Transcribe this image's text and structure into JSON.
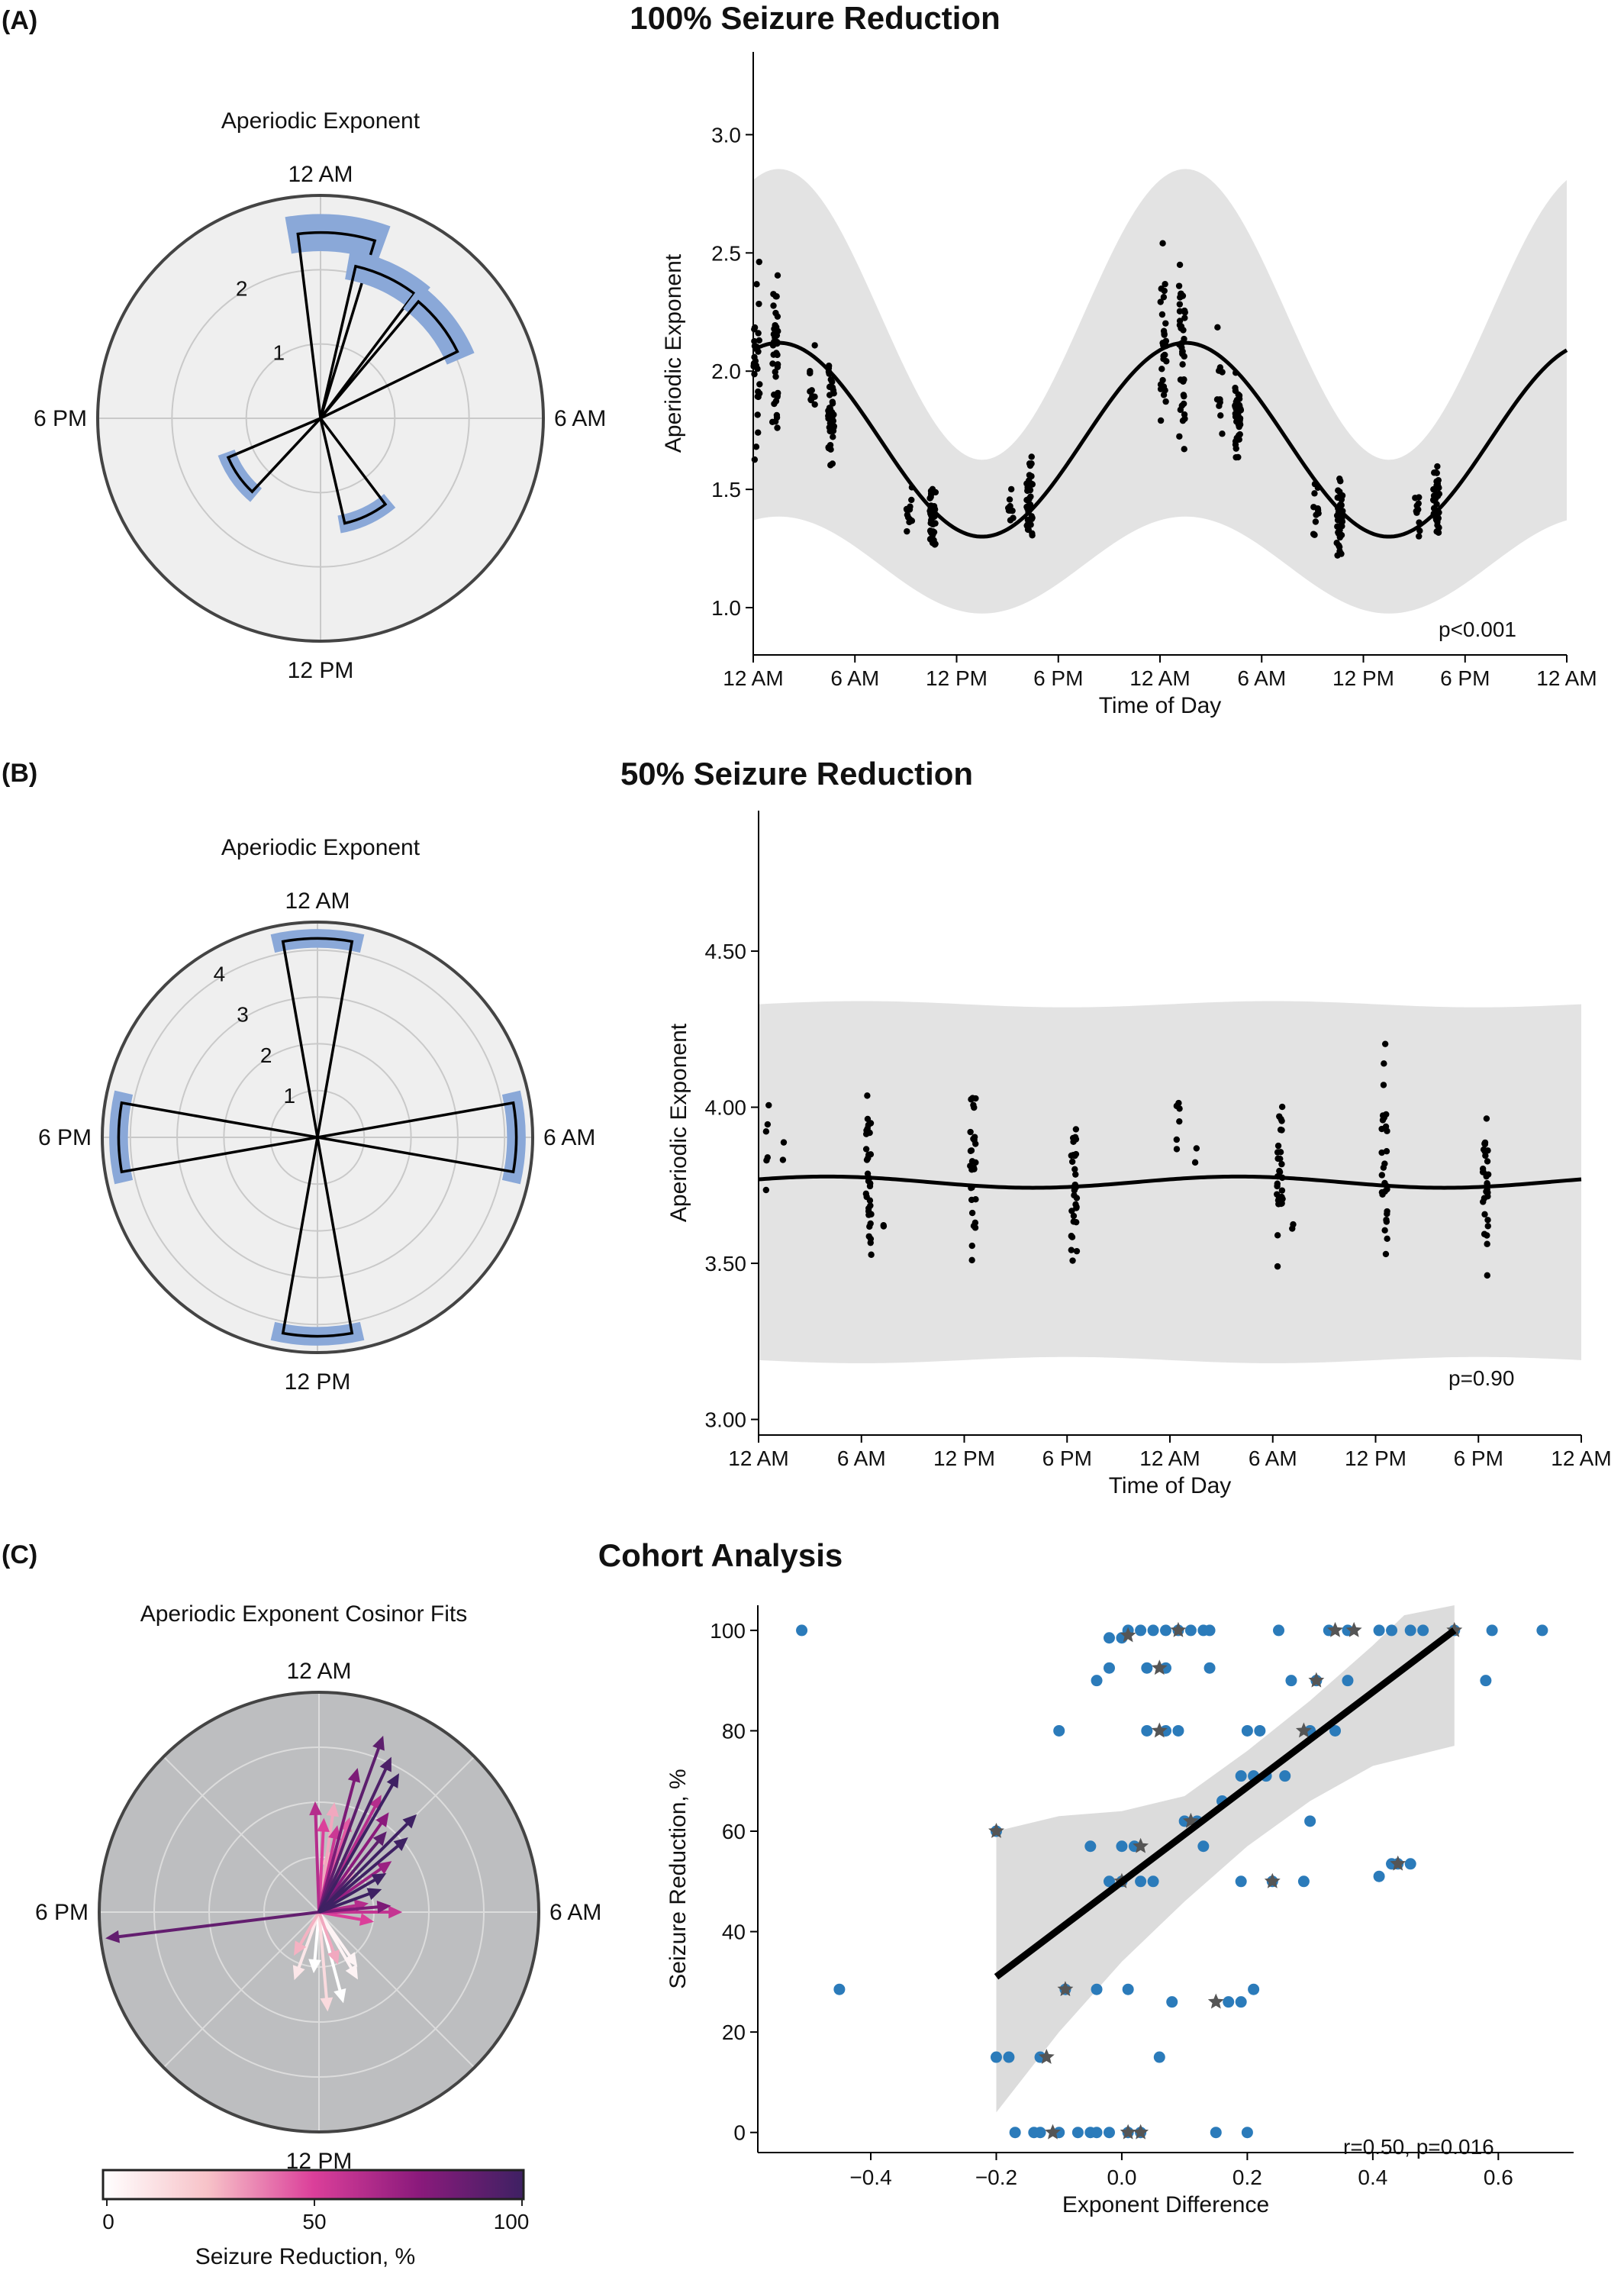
{
  "panels": {
    "A": {
      "letter": "(A)",
      "title": "100% Seizure Reduction",
      "polar_title": "Aperiodic Exponent",
      "annotation": "p<0.001"
    },
    "B": {
      "letter": "(B)",
      "title": "50% Seizure Reduction",
      "polar_title": "Aperiodic Exponent",
      "annotation": "p=0.90"
    },
    "C": {
      "letter": "(C)",
      "title": "Cohort Analysis",
      "polar_title": "Aperiodic Exponent Cosinor Fits",
      "annotation": "r=0.50, p=0.016",
      "colorbar_label": "Seizure Reduction, %",
      "colorbar_ticks": [
        "0",
        "50",
        "100"
      ]
    }
  },
  "colors": {
    "rose_fill": "#8aa8d8",
    "polar_bg_ab": "#efefef",
    "polar_bg_c": "#bdbec0",
    "band": "#e3e3e3",
    "scatter_point": "#2b7bba",
    "star": "#555555",
    "fit_line": "#000000"
  },
  "chart_data": [
    {
      "id": "A-polar",
      "type": "polar-bar",
      "title": "Aperiodic Exponent",
      "direction_labels": [
        "12 AM",
        "6 AM",
        "12 PM",
        "6 PM"
      ],
      "radial_ticks": [
        "1",
        "2"
      ],
      "rmax": 3,
      "bins": [
        {
          "angle_deg": 5,
          "width_deg": 24,
          "value": 2.5,
          "err": 0.25
        },
        {
          "angle_deg": 25,
          "width_deg": 24,
          "value": 2.1,
          "err": 0.2
        },
        {
          "angle_deg": 52,
          "width_deg": 24,
          "value": 2.05,
          "err": 0.2
        },
        {
          "angle_deg": 155,
          "width_deg": 24,
          "value": 1.45,
          "err": 0.12
        },
        {
          "angle_deg": 235,
          "width_deg": 24,
          "value": 1.35,
          "err": 0.12
        }
      ]
    },
    {
      "id": "A-line",
      "type": "scatter",
      "title": "100% Seizure Reduction",
      "xlabel": "Time of Day",
      "ylabel": "Aperiodic Exponent",
      "x_tick_labels": [
        "12 AM",
        "6 AM",
        "12 PM",
        "6 PM",
        "12 AM",
        "6 AM",
        "12 PM",
        "6 PM",
        "12 AM"
      ],
      "x_ticks_hours": [
        0,
        6,
        12,
        18,
        24,
        30,
        36,
        42,
        48
      ],
      "xlim": [
        0,
        48
      ],
      "ylim": [
        0.8,
        3.35
      ],
      "y_ticks": [
        "1.0",
        "1.5",
        "2.0",
        "2.5",
        "3.0"
      ],
      "fit": {
        "mesor": 1.71,
        "amplitude": 0.41,
        "acrophase_hours": 1.5,
        "period_hours": 24
      },
      "band_halfwidth_hours_pattern": {
        "half_width_peak": 0.52,
        "half_width_trough": 0.45
      },
      "clusters": [
        {
          "hour": 0.2,
          "center": 2.05,
          "spread": 0.5,
          "n": 28
        },
        {
          "hour": 1.3,
          "center": 2.1,
          "spread": 0.45,
          "n": 40
        },
        {
          "hour": 3.5,
          "center": 1.95,
          "spread": 0.28,
          "n": 10
        },
        {
          "hour": 4.6,
          "center": 1.8,
          "spread": 0.22,
          "n": 42
        },
        {
          "hour": 9.2,
          "center": 1.4,
          "spread": 0.15,
          "n": 12
        },
        {
          "hour": 10.6,
          "center": 1.38,
          "spread": 0.18,
          "n": 42
        },
        {
          "hour": 15.2,
          "center": 1.42,
          "spread": 0.12,
          "n": 10
        },
        {
          "hour": 16.3,
          "center": 1.45,
          "spread": 0.17,
          "n": 40
        },
        {
          "hour": 24.2,
          "center": 2.05,
          "spread": 0.5,
          "n": 28
        },
        {
          "hour": 25.3,
          "center": 2.1,
          "spread": 0.45,
          "n": 40
        },
        {
          "hour": 27.5,
          "center": 1.95,
          "spread": 0.28,
          "n": 10
        },
        {
          "hour": 28.6,
          "center": 1.8,
          "spread": 0.22,
          "n": 42
        },
        {
          "hour": 33.2,
          "center": 1.4,
          "spread": 0.15,
          "n": 12
        },
        {
          "hour": 34.6,
          "center": 1.38,
          "spread": 0.18,
          "n": 42
        },
        {
          "hour": 39.2,
          "center": 1.42,
          "spread": 0.12,
          "n": 10
        },
        {
          "hour": 40.3,
          "center": 1.45,
          "spread": 0.17,
          "n": 40
        }
      ]
    },
    {
      "id": "B-polar",
      "type": "polar-bar",
      "title": "Aperiodic Exponent",
      "direction_labels": [
        "12 AM",
        "6 AM",
        "12 PM",
        "6 PM"
      ],
      "radial_ticks": [
        "1",
        "2",
        "3",
        "4"
      ],
      "rmax": 4.6,
      "bins": [
        {
          "angle_deg": 0,
          "width_deg": 20,
          "value": 4.25,
          "err": 0.2
        },
        {
          "angle_deg": 90,
          "width_deg": 20,
          "value": 4.25,
          "err": 0.2
        },
        {
          "angle_deg": 180,
          "width_deg": 20,
          "value": 4.25,
          "err": 0.2
        },
        {
          "angle_deg": 270,
          "width_deg": 20,
          "value": 4.25,
          "err": 0.2
        }
      ]
    },
    {
      "id": "B-line",
      "type": "scatter",
      "title": "50% Seizure Reduction",
      "xlabel": "Time of Day",
      "ylabel": "Aperiodic Exponent",
      "x_tick_labels": [
        "12 AM",
        "6 AM",
        "12 PM",
        "6 PM",
        "12 AM",
        "6 AM",
        "12 PM",
        "6 PM",
        "12 AM"
      ],
      "x_ticks_hours": [
        0,
        6,
        12,
        18,
        24,
        30,
        36,
        42,
        48
      ],
      "xlim": [
        0,
        48
      ],
      "ylim": [
        2.95,
        4.95
      ],
      "y_ticks": [
        "3.00",
        "3.50",
        "4.00",
        "4.50"
      ],
      "fit": {
        "mesor": 3.76,
        "amplitude": 0.018,
        "acrophase_hours": 4,
        "period_hours": 24
      },
      "band": {
        "upper": 4.33,
        "lower": 3.19
      },
      "clusters": [
        {
          "hour": 0.5,
          "center": 3.9,
          "spread": 0.25,
          "n": 6
        },
        {
          "hour": 1.5,
          "center": 3.86,
          "spread": 0.05,
          "n": 2
        },
        {
          "hour": 6.4,
          "center": 3.78,
          "spread": 0.3,
          "n": 32
        },
        {
          "hour": 7.3,
          "center": 3.62,
          "spread": 0.03,
          "n": 2
        },
        {
          "hour": 12.5,
          "center": 3.8,
          "spread": 0.38,
          "n": 28
        },
        {
          "hour": 18.4,
          "center": 3.76,
          "spread": 0.3,
          "n": 30
        },
        {
          "hour": 24.5,
          "center": 3.9,
          "spread": 0.25,
          "n": 6
        },
        {
          "hour": 25.5,
          "center": 3.86,
          "spread": 0.05,
          "n": 2
        },
        {
          "hour": 30.4,
          "center": 3.78,
          "spread": 0.3,
          "n": 32
        },
        {
          "hour": 31.3,
          "center": 3.62,
          "spread": 0.03,
          "n": 2
        },
        {
          "hour": 36.5,
          "center": 3.8,
          "spread": 0.38,
          "n": 28
        },
        {
          "hour": 42.4,
          "center": 3.76,
          "spread": 0.3,
          "n": 30
        }
      ]
    },
    {
      "id": "C-polar",
      "type": "polar-arrows",
      "title": "Aperiodic Exponent Cosinor Fits",
      "direction_labels": [
        "12 AM",
        "6 AM",
        "12 PM",
        "6 PM"
      ],
      "arrows": [
        {
          "angle_deg": 263,
          "length": 1.95,
          "reduction": 88
        },
        {
          "angle_deg": 20,
          "length": 1.7,
          "reduction": 90
        },
        {
          "angle_deg": 25,
          "length": 1.55,
          "reduction": 95
        },
        {
          "angle_deg": 30,
          "length": 1.45,
          "reduction": 100
        },
        {
          "angle_deg": 15,
          "length": 1.35,
          "reduction": 80
        },
        {
          "angle_deg": 45,
          "length": 1.25,
          "reduction": 100
        },
        {
          "angle_deg": 50,
          "length": 1.05,
          "reduction": 100
        },
        {
          "angle_deg": 40,
          "length": 0.95,
          "reduction": 90
        },
        {
          "angle_deg": 55,
          "length": 0.8,
          "reduction": 70
        },
        {
          "angle_deg": 35,
          "length": 1.1,
          "reduction": 75
        },
        {
          "angle_deg": 28,
          "length": 1.2,
          "reduction": 62
        },
        {
          "angle_deg": 60,
          "length": 0.7,
          "reduction": 100
        },
        {
          "angle_deg": 70,
          "length": 0.6,
          "reduction": 100
        },
        {
          "angle_deg": 85,
          "length": 0.65,
          "reduction": 80
        },
        {
          "angle_deg": 80,
          "length": 0.45,
          "reduction": 62
        },
        {
          "angle_deg": 90,
          "length": 0.75,
          "reduction": 57
        },
        {
          "angle_deg": 100,
          "length": 0.5,
          "reduction": 50
        },
        {
          "angle_deg": 358,
          "length": 1.0,
          "reduction": 62
        },
        {
          "angle_deg": 3,
          "length": 0.85,
          "reduction": 50
        },
        {
          "angle_deg": 8,
          "length": 1.0,
          "reduction": 30
        },
        {
          "angle_deg": 12,
          "length": 0.8,
          "reduction": 55
        },
        {
          "angle_deg": 18,
          "length": 0.9,
          "reduction": 45
        },
        {
          "angle_deg": 10,
          "length": 0.55,
          "reduction": 25
        },
        {
          "angle_deg": 40,
          "length": 0.5,
          "reduction": 28
        },
        {
          "angle_deg": 150,
          "length": 0.7,
          "reduction": 5
        },
        {
          "angle_deg": 165,
          "length": 0.85,
          "reduction": 0
        },
        {
          "angle_deg": 175,
          "length": 0.9,
          "reduction": 15
        },
        {
          "angle_deg": 185,
          "length": 0.55,
          "reduction": 0
        },
        {
          "angle_deg": 200,
          "length": 0.65,
          "reduction": 10
        },
        {
          "angle_deg": 210,
          "length": 0.45,
          "reduction": 28
        },
        {
          "angle_deg": 145,
          "length": 0.6,
          "reduction": 5
        },
        {
          "angle_deg": 160,
          "length": 0.5,
          "reduction": 30
        }
      ],
      "rmax": 2.0,
      "rings": [
        0.5,
        1.0,
        1.5
      ]
    },
    {
      "id": "C-scatter",
      "type": "scatter",
      "title": "Cohort Analysis",
      "xlabel": "Exponent Difference",
      "ylabel": "Seizure Reduction, %",
      "xlim": [
        -0.58,
        0.72
      ],
      "ylim": [
        -4,
        105
      ],
      "x_ticks": [
        "−0.4",
        "−0.2",
        "0.0",
        "0.2",
        "0.4",
        "0.6"
      ],
      "x_tick_values": [
        -0.4,
        -0.2,
        0.0,
        0.2,
        0.4,
        0.6
      ],
      "y_ticks": [
        "0",
        "20",
        "40",
        "60",
        "80",
        "100"
      ],
      "y_tick_values": [
        0,
        20,
        40,
        60,
        80,
        100
      ],
      "regression": {
        "x": [
          -0.2,
          0.53
        ],
        "y": [
          31,
          100
        ]
      },
      "ci_upper": [
        [
          -0.2,
          60
        ],
        [
          -0.1,
          63
        ],
        [
          0.0,
          64
        ],
        [
          0.1,
          67
        ],
        [
          0.2,
          76
        ],
        [
          0.3,
          86
        ],
        [
          0.4,
          97
        ],
        [
          0.45,
          103
        ],
        [
          0.53,
          105
        ]
      ],
      "ci_lower": [
        [
          -0.2,
          4
        ],
        [
          -0.1,
          20
        ],
        [
          0.0,
          34
        ],
        [
          0.1,
          46
        ],
        [
          0.2,
          57
        ],
        [
          0.3,
          66
        ],
        [
          0.4,
          73
        ],
        [
          0.53,
          77
        ]
      ],
      "points": [
        [
          -0.51,
          100
        ],
        [
          -0.45,
          28.5
        ],
        [
          -0.2,
          60
        ],
        [
          -0.2,
          15
        ],
        [
          -0.18,
          15
        ],
        [
          -0.13,
          15
        ],
        [
          -0.17,
          0
        ],
        [
          -0.14,
          0
        ],
        [
          -0.13,
          0
        ],
        [
          -0.1,
          0
        ],
        [
          -0.07,
          0
        ],
        [
          -0.05,
          0
        ],
        [
          -0.04,
          0
        ],
        [
          -0.02,
          0
        ],
        [
          0.01,
          0
        ],
        [
          0.03,
          0
        ],
        [
          0.15,
          0
        ],
        [
          0.2,
          0
        ],
        [
          -0.1,
          80
        ],
        [
          -0.09,
          28.5
        ],
        [
          -0.04,
          28.5
        ],
        [
          0.01,
          28.5
        ],
        [
          0.08,
          26
        ],
        [
          0.17,
          26
        ],
        [
          0.19,
          26
        ],
        [
          0.21,
          28.5
        ],
        [
          0.06,
          15
        ],
        [
          -0.05,
          57
        ],
        [
          0.0,
          57
        ],
        [
          0.02,
          57
        ],
        [
          0.05,
          50
        ],
        [
          0.0,
          50
        ],
        [
          -0.02,
          50
        ],
        [
          0.03,
          50
        ],
        [
          0.1,
          62
        ],
        [
          0.12,
          62
        ],
        [
          0.13,
          57
        ],
        [
          0.19,
          50
        ],
        [
          0.24,
          50
        ],
        [
          0.29,
          50
        ],
        [
          0.3,
          62
        ],
        [
          0.41,
          51
        ],
        [
          0.43,
          53.5
        ],
        [
          0.44,
          53.5
        ],
        [
          0.46,
          53.5
        ],
        [
          0.16,
          66
        ],
        [
          0.19,
          71
        ],
        [
          0.21,
          71
        ],
        [
          0.23,
          71
        ],
        [
          0.26,
          71
        ],
        [
          0.2,
          80
        ],
        [
          0.22,
          80
        ],
        [
          0.3,
          80
        ],
        [
          0.34,
          80
        ],
        [
          0.04,
          80
        ],
        [
          0.07,
          80
        ],
        [
          0.09,
          80
        ],
        [
          0.27,
          90
        ],
        [
          0.31,
          90
        ],
        [
          0.36,
          90
        ],
        [
          0.58,
          90
        ],
        [
          -0.02,
          92.5
        ],
        [
          0.04,
          92.5
        ],
        [
          0.07,
          92.5
        ],
        [
          0.14,
          92.5
        ],
        [
          -0.04,
          90
        ],
        [
          -0.02,
          98.5
        ],
        [
          0.0,
          98.5
        ],
        [
          0.01,
          100
        ],
        [
          0.03,
          100
        ],
        [
          0.05,
          100
        ],
        [
          0.07,
          100
        ],
        [
          0.09,
          100
        ],
        [
          0.11,
          100
        ],
        [
          0.13,
          100
        ],
        [
          0.14,
          100
        ],
        [
          0.25,
          100
        ],
        [
          0.33,
          100
        ],
        [
          0.36,
          100
        ],
        [
          0.41,
          100
        ],
        [
          0.43,
          100
        ],
        [
          0.46,
          100
        ],
        [
          0.48,
          100
        ],
        [
          0.53,
          100
        ],
        [
          0.59,
          100
        ],
        [
          0.67,
          100
        ]
      ],
      "stars": [
        [
          -0.2,
          60
        ],
        [
          -0.12,
          15
        ],
        [
          -0.09,
          28.5
        ],
        [
          -0.11,
          0
        ],
        [
          0.01,
          0
        ],
        [
          0.03,
          0
        ],
        [
          0.15,
          26
        ],
        [
          0.03,
          57
        ],
        [
          0.0,
          50
        ],
        [
          0.11,
          62
        ],
        [
          0.24,
          50
        ],
        [
          0.44,
          53.5
        ],
        [
          0.29,
          80
        ],
        [
          0.06,
          80
        ],
        [
          0.31,
          90
        ],
        [
          0.06,
          92.5
        ],
        [
          0.01,
          99
        ],
        [
          0.09,
          100
        ],
        [
          0.34,
          100
        ],
        [
          0.37,
          100
        ],
        [
          0.53,
          100
        ]
      ]
    }
  ]
}
